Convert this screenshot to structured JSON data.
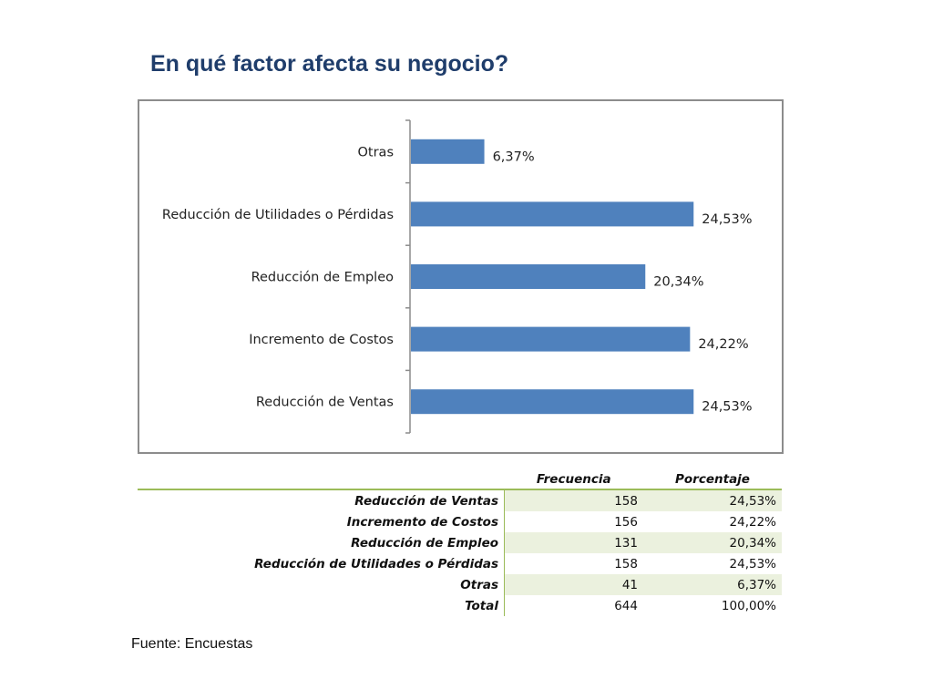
{
  "page": {
    "title": "En qué factor afecta su negocio?",
    "source": "Fuente: Encuestas"
  },
  "chart_data": {
    "type": "bar",
    "orientation": "horizontal",
    "categories": [
      "Otras",
      "Reducción de Utilidades o Pérdidas",
      "Reducción de Empleo",
      "Incremento de Costos",
      "Reducción de Ventas"
    ],
    "values": [
      6.37,
      24.53,
      20.34,
      24.22,
      24.53
    ],
    "value_labels": [
      "6,37%",
      "24,53%",
      "20,34%",
      "24,22%",
      "24,53%"
    ],
    "xlim": [
      0,
      25.3
    ],
    "bar_color": "#4f81bd",
    "grid": false,
    "legend": "none"
  },
  "table": {
    "headers": [
      "",
      "Frecuencia",
      "Porcentaje"
    ],
    "rows": [
      {
        "label": "Reducción de Ventas",
        "frequency": "158",
        "percent": "24,53%"
      },
      {
        "label": "Incremento de Costos",
        "frequency": "156",
        "percent": "24,22%"
      },
      {
        "label": "Reducción de Empleo",
        "frequency": "131",
        "percent": "20,34%"
      },
      {
        "label": "Reducción de Utilidades o Pérdidas",
        "frequency": "158",
        "percent": "24,53%"
      },
      {
        "label": "Otras",
        "frequency": "41",
        "percent": "6,37%"
      },
      {
        "label": "Total",
        "frequency": "644",
        "percent": "100,00%"
      }
    ],
    "header_rule_color": "#9bbb59",
    "row_shade_color": "#ebf1de"
  }
}
